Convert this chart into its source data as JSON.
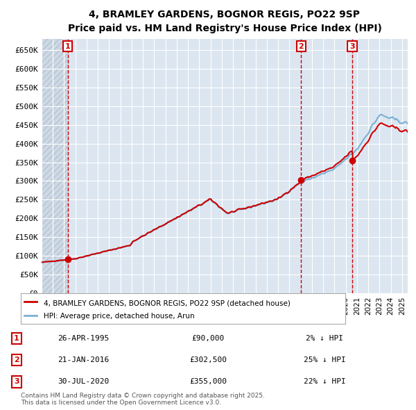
{
  "title_line1": "4, BRAMLEY GARDENS, BOGNOR REGIS, PO22 9SP",
  "title_line2": "Price paid vs. HM Land Registry's House Price Index (HPI)",
  "ylabel": "",
  "background_color": "#dce6f1",
  "plot_bg_color": "#dce6f1",
  "grid_color": "#ffffff",
  "hpi_line_color": "#7ab0d4",
  "price_line_color": "#cc0000",
  "sale_marker_color": "#cc0000",
  "dashed_line_color": "#cc0000",
  "ylim": [
    0,
    680000
  ],
  "yticks": [
    0,
    50000,
    100000,
    150000,
    200000,
    250000,
    300000,
    350000,
    400000,
    450000,
    500000,
    550000,
    600000,
    650000
  ],
  "ytick_labels": [
    "£0",
    "£50K",
    "£100K",
    "£150K",
    "£200K",
    "£250K",
    "£300K",
    "£350K",
    "£400K",
    "£450K",
    "£500K",
    "£550K",
    "£600K",
    "£650K"
  ],
  "xmin": 1993.0,
  "xmax": 2025.5,
  "sales": [
    {
      "year": 1995.32,
      "price": 90000,
      "label": "1"
    },
    {
      "year": 2016.05,
      "price": 302500,
      "label": "2"
    },
    {
      "year": 2020.58,
      "price": 355000,
      "label": "3"
    }
  ],
  "legend_entries": [
    {
      "label": "4, BRAMLEY GARDENS, BOGNOR REGIS, PO22 9SP (detached house)",
      "color": "#cc0000",
      "lw": 2
    },
    {
      "label": "HPI: Average price, detached house, Arun",
      "color": "#7ab0d4",
      "lw": 2
    }
  ],
  "table_rows": [
    {
      "num": "1",
      "date": "26-APR-1995",
      "price": "£90,000",
      "hpi": "2% ↓ HPI"
    },
    {
      "num": "2",
      "date": "21-JAN-2016",
      "price": "£302,500",
      "hpi": "25% ↓ HPI"
    },
    {
      "num": "3",
      "date": "30-JUL-2020",
      "price": "£355,000",
      "hpi": "22% ↓ HPI"
    }
  ],
  "footnote": "Contains HM Land Registry data © Crown copyright and database right 2025.\nThis data is licensed under the Open Government Licence v3.0.",
  "hatch_color": "#b0b8c8",
  "hatch_xmax": 1995.32
}
